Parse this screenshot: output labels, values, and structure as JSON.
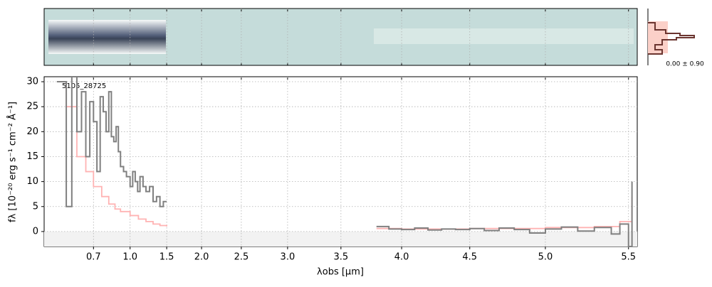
{
  "chart_data": {
    "type": "line",
    "step": true,
    "xlabel": "λobs [μm]",
    "ylabel": "fλ [10⁻²⁰ erg s⁻¹ cm⁻² Å⁻¹]",
    "annotation": "5105_28725",
    "noise_label": "0.00 ± 0.90",
    "xscale": "prism",
    "xlim": [
      0.515,
      5.55
    ],
    "ylim": [
      -3,
      31
    ],
    "xticks": [
      0.7,
      {
        "value": 1,
        "label": "1.0"
      },
      1.5,
      {
        "value": 2,
        "label": "2.0"
      },
      2.5,
      {
        "value": 3,
        "label": "3.0"
      },
      3.5,
      {
        "value": 4,
        "label": "4.0"
      },
      4.5,
      {
        "value": 5,
        "label": "5.0"
      },
      5.5
    ],
    "yticks": [
      0,
      5,
      10,
      15,
      20,
      25,
      30
    ],
    "grid": true,
    "series": [
      {
        "color": "#ffb3b3",
        "x": [
          0.55,
          0.58,
          0.62,
          0.66,
          0.7,
          0.75,
          0.8,
          0.85,
          0.9,
          1.0,
          1.1,
          1.2,
          1.3,
          1.4,
          1.5,
          2.5,
          3.8,
          4.0,
          4.5,
          5.0,
          5.3,
          5.45,
          5.52
        ],
        "values": [
          30,
          25,
          15,
          12,
          9,
          7,
          5.5,
          4.5,
          4,
          3.2,
          2.5,
          2,
          1.5,
          1.2,
          1,
          null,
          0.6,
          0.5,
          0.6,
          0.8,
          1,
          2,
          7
        ]
      },
      {
        "color": "#808080",
        "x": [
          0.55,
          0.58,
          0.6,
          0.62,
          0.64,
          0.66,
          0.68,
          0.7,
          0.72,
          0.74,
          0.76,
          0.78,
          0.8,
          0.82,
          0.84,
          0.86,
          0.88,
          0.9,
          0.93,
          0.96,
          1.0,
          1.03,
          1.06,
          1.09,
          1.12,
          1.16,
          1.2,
          1.25,
          1.3,
          1.35,
          1.4,
          1.45,
          1.5,
          2.5,
          3.8,
          3.9,
          4.0,
          4.1,
          4.2,
          4.3,
          4.4,
          4.5,
          4.6,
          4.7,
          4.8,
          4.9,
          5.0,
          5.1,
          5.2,
          5.3,
          5.4,
          5.45,
          5.5,
          5.52
        ],
        "values": [
          30,
          5,
          31,
          20,
          28,
          15,
          26,
          22,
          12,
          27,
          24,
          20,
          28,
          19,
          18,
          21,
          16,
          13,
          12,
          11,
          9,
          12,
          10,
          8,
          11,
          9,
          8,
          9,
          6,
          7,
          5,
          6,
          6,
          null,
          1,
          0.5,
          0.4,
          0.7,
          0.3,
          0.5,
          0.4,
          0.6,
          0.2,
          0.7,
          0.4,
          -0.3,
          0.5,
          0.9,
          0.1,
          0.8,
          -0.5,
          1.5,
          -3,
          10
        ]
      }
    ]
  }
}
